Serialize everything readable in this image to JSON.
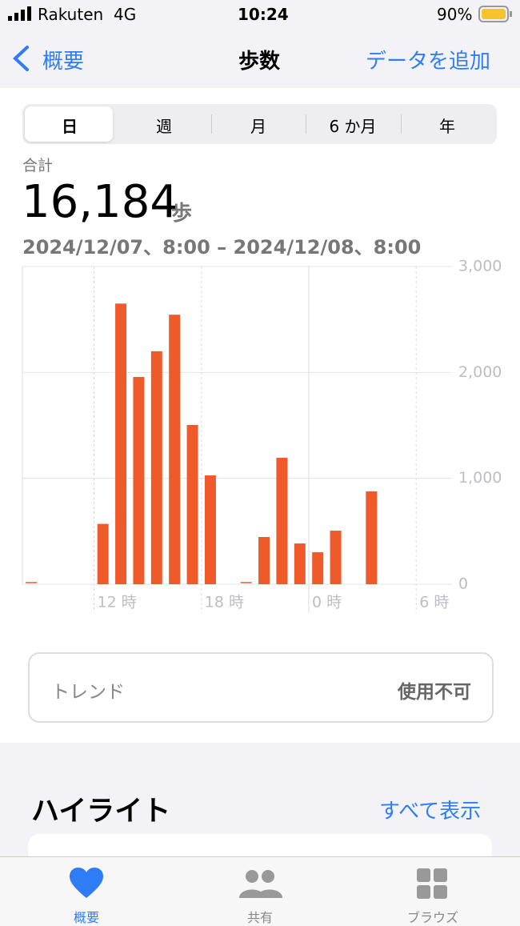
{
  "status_bar": {
    "carrier": "Rakuten",
    "network": "4G",
    "time": "10:24",
    "battery": "90%"
  },
  "nav": {
    "back": "概要",
    "title": "歩数",
    "action": "データを追加"
  },
  "segments": [
    "日",
    "週",
    "月",
    "6 か月",
    "年"
  ],
  "summary": {
    "label": "合計",
    "value": "16,184",
    "unit": "歩",
    "range": "2024/12/07、8:00 – 2024/12/08、8:00"
  },
  "chart_data": {
    "type": "bar",
    "color": "#ef5a2b",
    "categories": [
      null,
      null,
      null,
      null,
      "12 時",
      null,
      null,
      null,
      null,
      null,
      "18 時",
      null,
      null,
      null,
      null,
      null,
      "0 時",
      null,
      null,
      null,
      null,
      null,
      "6 時",
      null
    ],
    "values": [
      10,
      null,
      null,
      null,
      570,
      2650,
      1957,
      2200,
      2545,
      1504,
      1028,
      null,
      10,
      446,
      1194,
      385,
      302,
      506,
      null,
      877,
      null,
      null,
      null,
      null
    ],
    "ylim": [
      0,
      3000
    ],
    "yticks": [
      0,
      {
        "value": 1000,
        "label": "1,000"
      },
      {
        "value": 2000,
        "label": "2,000"
      },
      {
        "value": 3000,
        "label": "3,000"
      }
    ],
    "grid": true
  },
  "trend": {
    "label": "トレンド",
    "status": "使用不可"
  },
  "highlights": {
    "title": "ハイライト",
    "action": "すべて表示"
  },
  "tab_bar": [
    "概要",
    "共有",
    "ブラウズ"
  ]
}
